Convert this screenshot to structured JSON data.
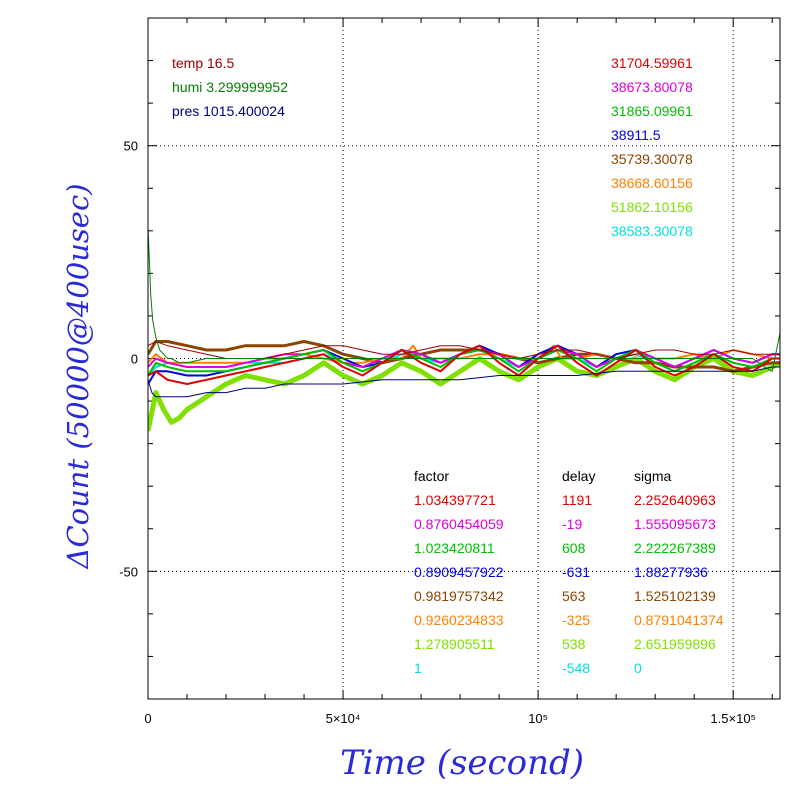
{
  "chart_data": {
    "type": "line",
    "xlabel": "Time (second)",
    "ylabel": "ΔCount (50000@400usec)",
    "xlim": [
      0,
      162000
    ],
    "ylim": [
      -80,
      80
    ],
    "grid": true,
    "x_ticks": [
      {
        "value": 0,
        "label": "0"
      },
      {
        "value": 50000,
        "label": "5×10⁴"
      },
      {
        "value": 100000,
        "label": "10⁵"
      },
      {
        "value": 150000,
        "label": "1.5×10⁵"
      }
    ],
    "y_ticks": [
      {
        "value": 50,
        "label": "50"
      },
      {
        "value": 0,
        "label": "0"
      },
      {
        "value": -50,
        "label": "-50"
      }
    ],
    "env_labels": [
      {
        "text": "temp 16.5",
        "color": "#a00000"
      },
      {
        "text": "humi 3.299999952",
        "color": "#008000"
      },
      {
        "text": "pres 1015.400024",
        "color": "#000080"
      }
    ],
    "counts": [
      {
        "text": "31704.59961",
        "color": "#e00000"
      },
      {
        "text": "38673.80078",
        "color": "#e000e0"
      },
      {
        "text": "31865.09961",
        "color": "#00c000"
      },
      {
        "text": "38911.5",
        "color": "#0000e0"
      },
      {
        "text": "35739.30078",
        "color": "#8b4500"
      },
      {
        "text": "38668.60156",
        "color": "#ff8000"
      },
      {
        "text": "51862.10156",
        "color": "#80e000"
      },
      {
        "text": "38583.30078",
        "color": "#00e0e0"
      }
    ],
    "table": {
      "headers": [
        "factor",
        "delay",
        "sigma"
      ],
      "rows": [
        {
          "factor": "1.034397721",
          "delay": "1191",
          "sigma": "2.252640963",
          "color": "#e00000"
        },
        {
          "factor": "0.8760454059",
          "delay": "-19",
          "sigma": "1.555095673",
          "color": "#e000e0"
        },
        {
          "factor": "1.023420811",
          "delay": "608",
          "sigma": "2.222267389",
          "color": "#00c000"
        },
        {
          "factor": "0.8909457922",
          "delay": "-631",
          "sigma": "1.88277936",
          "color": "#0000e0"
        },
        {
          "factor": "0.9819757342",
          "delay": "563",
          "sigma": "1.525102139",
          "color": "#8b4500"
        },
        {
          "factor": "0.9260234833",
          "delay": "-325",
          "sigma": "0.8791041374",
          "color": "#ff8000"
        },
        {
          "factor": "1.278905511",
          "delay": "538",
          "sigma": "2.651959896",
          "color": "#80e000"
        },
        {
          "factor": "1",
          "delay": "-548",
          "sigma": "0",
          "color": "#00e0e0"
        }
      ]
    },
    "series": [
      {
        "color": "#80e000",
        "x": [
          0,
          2000,
          4000,
          6000,
          8000,
          10000,
          15000,
          20000,
          25000,
          30000,
          35000,
          40000,
          45000,
          50000,
          55000,
          60000,
          65000,
          70000,
          75000,
          80000,
          85000,
          90000,
          95000,
          100000,
          105000,
          110000,
          115000,
          120000,
          125000,
          130000,
          135000,
          140000,
          145000,
          150000,
          155000,
          160000,
          162000
        ],
        "y": [
          -17,
          -8,
          -12,
          -15,
          -14,
          -12,
          -9,
          -6,
          -4,
          -5,
          -6,
          -4,
          -1,
          -4,
          -6,
          -4,
          -1,
          -3,
          -6,
          -3,
          0,
          -3,
          -5,
          -2,
          0,
          -3,
          -4,
          -2,
          0,
          -3,
          -5,
          -2,
          0,
          -3,
          -4,
          -2,
          -1
        ]
      },
      {
        "color": "#00e0e0",
        "x": [
          0,
          2000,
          5000,
          10000,
          15000,
          20000,
          25000,
          30000,
          35000,
          40000,
          45000,
          50000,
          55000,
          60000,
          65000,
          70000,
          75000,
          80000,
          85000,
          90000,
          95000,
          100000,
          105000,
          110000,
          115000,
          120000,
          125000,
          130000,
          135000,
          140000,
          145000,
          150000,
          155000,
          160000,
          162000
        ],
        "y": [
          -4,
          -2,
          -1,
          -2,
          -2,
          -2,
          -1,
          -1,
          -1,
          0,
          1,
          -1,
          -2,
          -1,
          1,
          0,
          -1,
          1,
          2,
          0,
          -2,
          0,
          2,
          0,
          -2,
          0,
          1,
          -1,
          -2,
          0,
          1,
          -1,
          -2,
          0,
          0
        ]
      },
      {
        "color": "#8b4500",
        "x": [
          0,
          2000,
          5000,
          10000,
          15000,
          20000,
          25000,
          30000,
          35000,
          40000,
          45000,
          50000,
          55000,
          60000,
          65000,
          70000,
          75000,
          80000,
          85000,
          90000,
          95000,
          100000,
          105000,
          110000,
          115000,
          120000,
          125000,
          130000,
          135000,
          140000,
          145000,
          150000,
          155000,
          160000,
          162000
        ],
        "y": [
          1,
          4,
          4,
          3,
          2,
          2,
          3,
          3,
          3,
          4,
          3,
          1,
          0,
          -1,
          0,
          1,
          2,
          2,
          2,
          1,
          0,
          -1,
          0,
          1,
          1,
          0,
          -1,
          -1,
          -2,
          -2,
          -2,
          -3,
          -2,
          -1,
          -1
        ]
      },
      {
        "color": "#ff8000",
        "x": [
          0,
          2000,
          5000,
          10000,
          15000,
          20000,
          25000,
          30000,
          35000,
          40000,
          45000,
          50000,
          55000,
          60000,
          65000,
          68000,
          70000,
          75000,
          80000,
          85000,
          90000,
          95000,
          100000,
          104000,
          106000,
          110000,
          115000,
          120000,
          125000,
          130000,
          135000,
          140000,
          145000,
          150000,
          155000,
          160000,
          162000
        ],
        "y": [
          -1,
          1,
          -1,
          -1,
          -1,
          -1,
          -1,
          0,
          0,
          1,
          0,
          -1,
          -1,
          0,
          0,
          3,
          0,
          0,
          0,
          1,
          1,
          0,
          0,
          3,
          0,
          0,
          1,
          0,
          2,
          0,
          0,
          1,
          0,
          2,
          1,
          0,
          0
        ]
      },
      {
        "color": "#0000e0",
        "x": [
          0,
          2000,
          5000,
          10000,
          15000,
          20000,
          25000,
          30000,
          35000,
          40000,
          45000,
          50000,
          55000,
          60000,
          65000,
          70000,
          75000,
          80000,
          85000,
          90000,
          95000,
          100000,
          105000,
          110000,
          115000,
          120000,
          125000,
          130000,
          135000,
          140000,
          145000,
          150000,
          155000,
          160000,
          162000
        ],
        "y": [
          -6,
          -3,
          -3,
          -4,
          -4,
          -3,
          -2,
          -1,
          0,
          1,
          2,
          0,
          -2,
          -1,
          2,
          1,
          -1,
          1,
          3,
          1,
          -2,
          1,
          3,
          1,
          -2,
          1,
          2,
          0,
          -2,
          0,
          2,
          0,
          -1,
          1,
          1
        ]
      },
      {
        "color": "#e000e0",
        "x": [
          0,
          2000,
          5000,
          10000,
          15000,
          20000,
          25000,
          30000,
          35000,
          40000,
          45000,
          50000,
          55000,
          60000,
          65000,
          70000,
          75000,
          80000,
          85000,
          90000,
          95000,
          100000,
          105000,
          110000,
          115000,
          120000,
          125000,
          130000,
          135000,
          140000,
          145000,
          150000,
          155000,
          160000,
          162000
        ],
        "y": [
          -2,
          0,
          -1,
          -2,
          -2,
          -2,
          -1,
          0,
          1,
          1,
          2,
          -1,
          -2,
          0,
          2,
          1,
          -1,
          1,
          2,
          1,
          -2,
          0,
          2,
          1,
          -2,
          0,
          2,
          0,
          -2,
          0,
          2,
          0,
          -1,
          1,
          1
        ]
      },
      {
        "color": "#00c000",
        "x": [
          0,
          2000,
          5000,
          10000,
          15000,
          20000,
          25000,
          30000,
          35000,
          40000,
          45000,
          50000,
          55000,
          60000,
          65000,
          70000,
          75000,
          80000,
          85000,
          90000,
          95000,
          100000,
          105000,
          110000,
          115000,
          120000,
          125000,
          130000,
          135000,
          140000,
          145000,
          150000,
          155000,
          160000,
          162000
        ],
        "y": [
          -4,
          -1,
          -2,
          -3,
          -3,
          -3,
          -2,
          -1,
          0,
          1,
          2,
          -1,
          -3,
          -1,
          2,
          0,
          -2,
          1,
          2,
          0,
          -3,
          0,
          2,
          0,
          -3,
          0,
          2,
          -1,
          -3,
          -1,
          1,
          -1,
          -2,
          0,
          0
        ]
      },
      {
        "color": "#e00000",
        "x": [
          0,
          2000,
          5000,
          10000,
          15000,
          20000,
          25000,
          30000,
          35000,
          40000,
          45000,
          50000,
          55000,
          60000,
          65000,
          70000,
          75000,
          80000,
          85000,
          90000,
          95000,
          100000,
          105000,
          110000,
          115000,
          120000,
          125000,
          130000,
          135000,
          140000,
          145000,
          150000,
          155000,
          160000,
          162000
        ],
        "y": [
          -4,
          -3,
          -5,
          -6,
          -5,
          -4,
          -3,
          -2,
          -1,
          0,
          1,
          -2,
          -4,
          -1,
          2,
          -1,
          -3,
          1,
          3,
          -1,
          -4,
          0,
          3,
          -1,
          -4,
          -1,
          2,
          -2,
          -4,
          -2,
          1,
          -2,
          -3,
          0,
          0
        ]
      },
      {
        "color": "#000080",
        "x": [
          0,
          1000,
          2000,
          5000,
          10000,
          15000,
          20000,
          25000,
          30000,
          35000,
          40000,
          50000,
          60000,
          70000,
          80000,
          90000,
          100000,
          110000,
          120000,
          130000,
          140000,
          150000,
          155000,
          160000,
          162000
        ],
        "y": [
          -5,
          -8,
          -9,
          -9,
          -9,
          -8,
          -8,
          -7,
          -7,
          -6,
          -6,
          -6,
          -5,
          -5,
          -5,
          -4,
          -4,
          -4,
          -3,
          -3,
          -3,
          -3,
          -3,
          -2,
          -2
        ]
      },
      {
        "color": "#a00000",
        "x": [
          0,
          2000,
          5000,
          10000,
          15000,
          20000,
          25000,
          30000,
          35000,
          40000,
          45000,
          50000,
          55000,
          60000,
          65000,
          70000,
          75000,
          80000,
          85000,
          90000,
          95000,
          100000,
          105000,
          110000,
          115000,
          120000,
          125000,
          130000,
          135000,
          140000,
          145000,
          150000,
          155000,
          160000,
          162000
        ],
        "y": [
          3,
          4,
          3,
          2,
          1,
          0,
          0,
          0,
          1,
          2,
          3,
          3,
          2,
          1,
          1,
          2,
          3,
          3,
          2,
          1,
          0,
          1,
          2,
          2,
          1,
          0,
          1,
          2,
          2,
          1,
          1,
          2,
          1,
          1,
          1
        ]
      },
      {
        "color": "#008000",
        "x": [
          0,
          300,
          700,
          1200,
          2000,
          3000,
          4000,
          5000,
          6000,
          8000,
          10000,
          15000,
          20000,
          30000,
          40000,
          60000,
          80000,
          100000,
          120000,
          140000,
          155000,
          158000,
          160000,
          162000
        ],
        "y": [
          31,
          24,
          15,
          9,
          5,
          2,
          1,
          0,
          0,
          -1,
          -1,
          0,
          0,
          0,
          0,
          0,
          0,
          0,
          0,
          0,
          0,
          -2,
          -3,
          6
        ]
      }
    ]
  }
}
